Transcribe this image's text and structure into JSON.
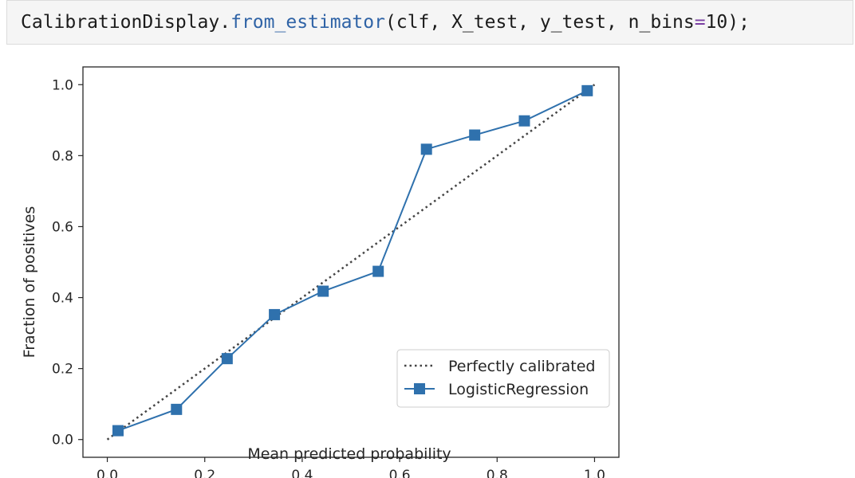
{
  "code_cell": {
    "object": "CalibrationDisplay",
    "dot": ".",
    "method": "from_estimator",
    "open_paren": "(",
    "args": "clf, X_test, y_test, n_bins",
    "equals": "=",
    "value": "10",
    "close": ");"
  },
  "chart_data": {
    "type": "line",
    "xlabel": "Mean predicted probability",
    "ylabel": "Fraction of positives",
    "xlim": [
      -0.05,
      1.05
    ],
    "ylim": [
      -0.05,
      1.05
    ],
    "xticks": [
      "0.0",
      "0.2",
      "0.4",
      "0.6",
      "0.8",
      "1.0"
    ],
    "yticks": [
      "0.0",
      "0.2",
      "0.4",
      "0.6",
      "0.8",
      "1.0"
    ],
    "grid": false,
    "legend_position": "lower-right",
    "series": [
      {
        "name": "Perfectly calibrated",
        "style": "dotted",
        "color": "#444444",
        "x": [
          0.0,
          1.0
        ],
        "y": [
          0.0,
          1.0
        ]
      },
      {
        "name": "LogisticRegression",
        "style": "solid-square-markers",
        "color": "#2f71ad",
        "x": [
          0.022,
          0.142,
          0.246,
          0.343,
          0.443,
          0.556,
          0.655,
          0.754,
          0.856,
          0.985
        ],
        "y": [
          0.025,
          0.085,
          0.228,
          0.352,
          0.418,
          0.474,
          0.818,
          0.858,
          0.898,
          0.983
        ]
      }
    ]
  }
}
